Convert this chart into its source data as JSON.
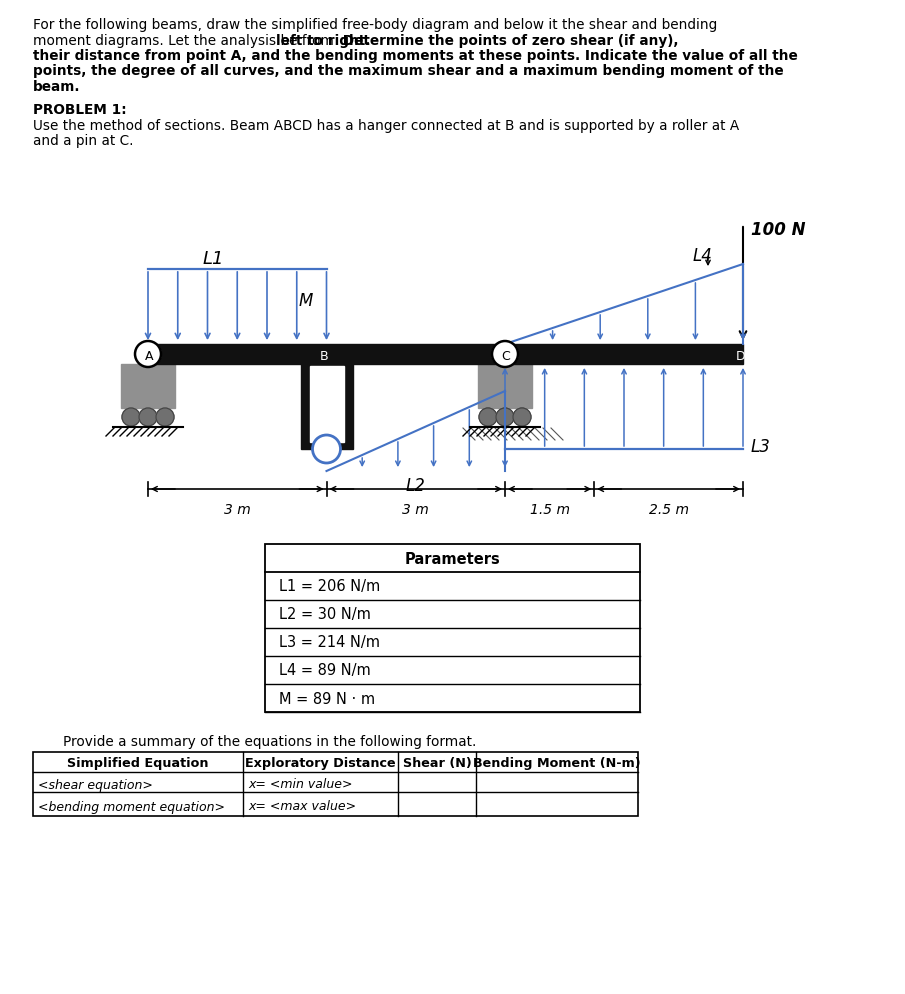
{
  "bg_color": "#ffffff",
  "beam_color": "#111111",
  "arrow_color": "#4472C4",
  "gray_support": "#888888",
  "gray_dark": "#555555",
  "text_color": "#000000",
  "para_line1": "For the following beams, draw the simplified free-body diagram and below it the shear and bending",
  "para_line2a": "moment diagrams. Let the analysis be from ",
  "para_line2b": "left to right.",
  "para_line2c": " Determine the points of zero shear (if any),",
  "para_line3": "their distance from point A, and the bending moments at these points. Indicate the value of all the",
  "para_line4": "points, the degree of all curves, and the maximum shear and a maximum bending moment of the",
  "para_line5": "beam.",
  "prob_title": "PROBLEM 1:",
  "prob_line1": "Use the method of sections. Beam ABCD has a hanger connected at B and is supported by a roller at A",
  "prob_line2": "and a pin at C.",
  "params_title": "Parameters",
  "params": [
    "L1 = 206 N/m",
    "L2 = 30 N/m",
    "L3 = 214 N/m",
    "L4 = 89 N/m",
    "M = 89 N · m"
  ],
  "summary_sentence": "Provide a summary of the equations in the following format.",
  "tbl_headers": [
    "Simplified Equation",
    "Exploratory Distance",
    "Shear (N)",
    "Bending Moment (N-m)"
  ],
  "tbl_row1": [
    "<shear equation>",
    "x= <min value>",
    "",
    ""
  ],
  "tbl_row2": [
    "<bending moment equation>",
    "x= <max value>",
    "",
    ""
  ],
  "dim_labels": [
    "3 m",
    "3 m",
    "1.5 m",
    "2.5 m"
  ],
  "load_100N": "100 N",
  "label_L1": "L1",
  "label_L2": "L2",
  "label_L3": "L3",
  "label_L4": "L4",
  "label_M": "M",
  "label_A": "A",
  "label_B": "B",
  "label_C": "C",
  "label_D": "D"
}
